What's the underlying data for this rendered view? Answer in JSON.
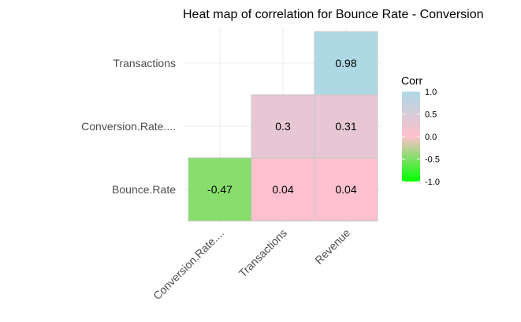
{
  "chart_data": {
    "type": "heatmap",
    "title": "Heat map of correlation for Bounce Rate - Conversion",
    "x_categories": [
      "Conversion.Rate....",
      "Transactions",
      "Revenue"
    ],
    "y_categories": [
      "Bounce.Rate",
      "Conversion.Rate....",
      "Transactions"
    ],
    "cells": [
      {
        "x": "Conversion.Rate....",
        "y": "Bounce.Rate",
        "value": -0.47,
        "label": "-0.47"
      },
      {
        "x": "Transactions",
        "y": "Bounce.Rate",
        "value": 0.04,
        "label": "0.04"
      },
      {
        "x": "Revenue",
        "y": "Bounce.Rate",
        "value": 0.04,
        "label": "0.04"
      },
      {
        "x": "Transactions",
        "y": "Conversion.Rate....",
        "value": 0.3,
        "label": "0.3"
      },
      {
        "x": "Revenue",
        "y": "Conversion.Rate....",
        "value": 0.31,
        "label": "0.31"
      },
      {
        "x": "Revenue",
        "y": "Transactions",
        "value": 0.98,
        "label": "0.98"
      }
    ],
    "legend": {
      "title": "Corr",
      "ticks": [
        "1.0",
        "0.5",
        "0.0",
        "-0.5",
        "-1.0"
      ],
      "tick_values": [
        1.0,
        0.5,
        0.0,
        -0.5,
        -1.0
      ],
      "range": [
        -1.0,
        1.0
      ],
      "colors": {
        "low": "#00ff00",
        "mid": "#ffc0cb",
        "high": "#add8e6"
      }
    },
    "grid": true,
    "legend_position": "right"
  }
}
